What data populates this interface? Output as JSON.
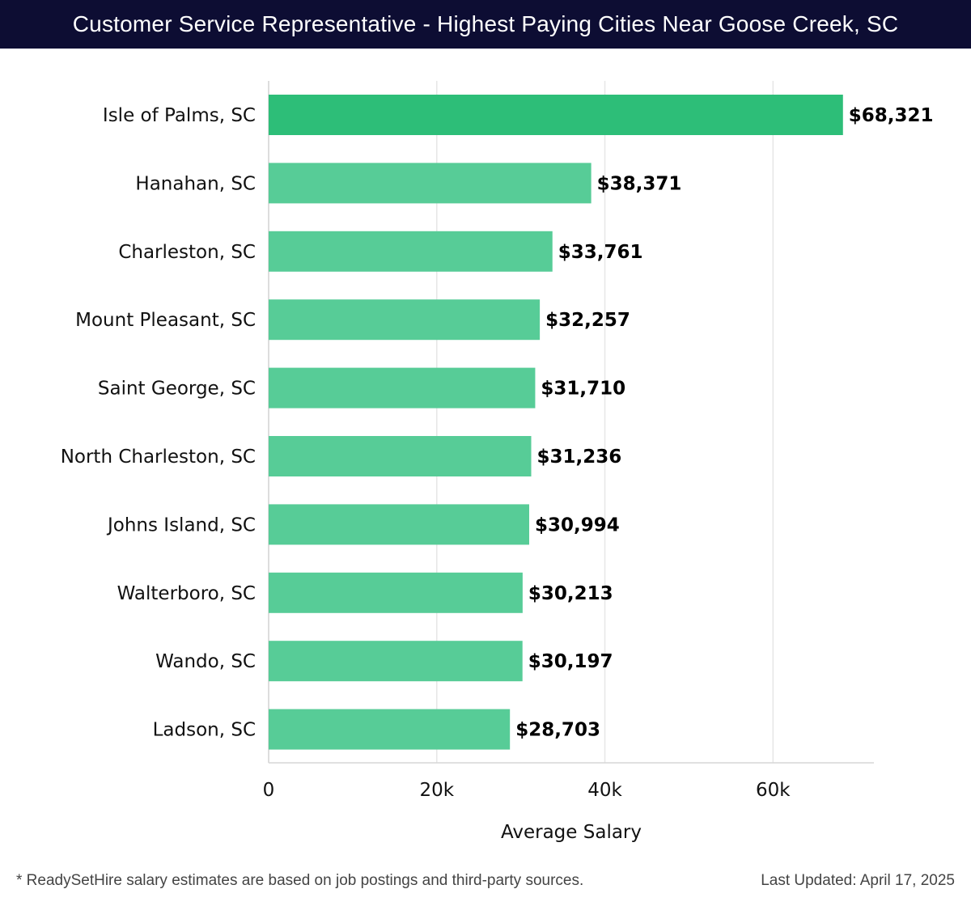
{
  "header": {
    "title": "Customer Service Representative - Highest Paying Cities Near Goose Creek, SC"
  },
  "footer": {
    "disclaimer": "* ReadySetHire salary estimates are based on job postings and third-party sources.",
    "updated": "Last Updated: April 17, 2025"
  },
  "colors": {
    "header_bg": "#0d0d33",
    "bar_top": "#2dbe78",
    "bar": "#57cc97",
    "grid": "#e6e6e6"
  },
  "chart_data": {
    "type": "bar",
    "orientation": "horizontal",
    "title": "Customer Service Representative - Highest Paying Cities Near Goose Creek, SC",
    "xlabel": "Average Salary",
    "ylabel": "",
    "xlim": [
      0,
      72000
    ],
    "xticks": [
      0,
      20000,
      40000,
      60000
    ],
    "xtick_labels": [
      "0",
      "20k",
      "40k",
      "60k"
    ],
    "grid": true,
    "categories": [
      "Isle of Palms, SC",
      "Hanahan, SC",
      "Charleston, SC",
      "Mount Pleasant, SC",
      "Saint George, SC",
      "North Charleston, SC",
      "Johns Island, SC",
      "Walterboro, SC",
      "Wando, SC",
      "Ladson, SC"
    ],
    "values": [
      68321,
      38371,
      33761,
      32257,
      31710,
      31236,
      30994,
      30213,
      30197,
      28703
    ],
    "value_labels": [
      "$68,321",
      "$38,371",
      "$33,761",
      "$32,257",
      "$31,710",
      "$31,236",
      "$30,994",
      "$30,213",
      "$30,197",
      "$28,703"
    ]
  }
}
